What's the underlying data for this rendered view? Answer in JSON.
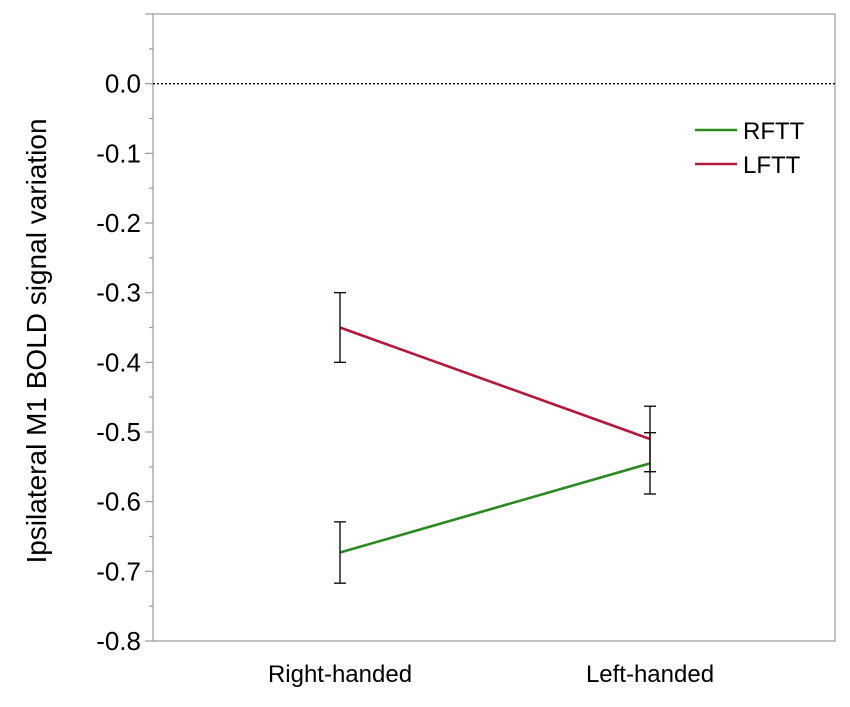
{
  "chart_data": {
    "type": "line",
    "title": "",
    "xlabel": "",
    "ylabel": "Ipsilateral M1 BOLD signal variation",
    "categories": [
      "Right-handed",
      "Left-handed"
    ],
    "ylim": [
      -0.8,
      0.1
    ],
    "yticks": [
      0.0,
      -0.1,
      -0.2,
      -0.3,
      -0.4,
      -0.5,
      -0.6,
      -0.7,
      -0.8
    ],
    "ytick_labels": [
      "0.0",
      "-0.1",
      "-0.2",
      "-0.3",
      "-0.4",
      "-0.5",
      "-0.6",
      "-0.7",
      "-0.8"
    ],
    "reference_line": {
      "y": 0.0,
      "style": "dotted"
    },
    "grid": false,
    "legend_position": "top-right",
    "series": [
      {
        "name": "RFTT",
        "color": "#2a8a1f",
        "values": [
          -0.673,
          -0.545
        ],
        "error": [
          0.044,
          0.044
        ]
      },
      {
        "name": "LFTT",
        "color": "#b5183b",
        "values": [
          -0.35,
          -0.51
        ],
        "error": [
          0.05,
          0.047
        ]
      }
    ]
  }
}
